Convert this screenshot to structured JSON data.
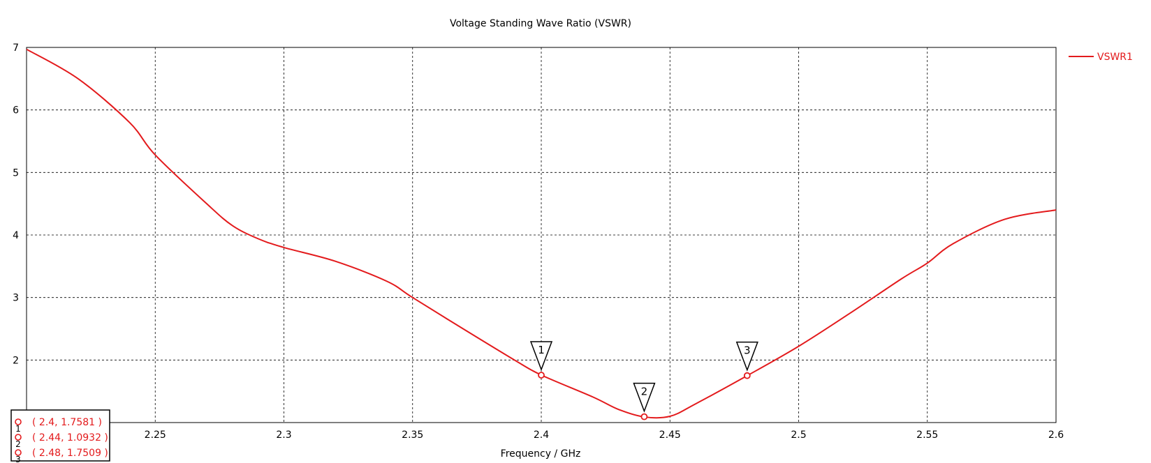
{
  "chart_data": {
    "type": "line",
    "title": "Voltage Standing Wave Ratio (VSWR)",
    "xlabel": "Frequency / GHz",
    "ylabel": "",
    "xlim": [
      2.2,
      2.6
    ],
    "ylim": [
      1,
      7
    ],
    "x_ticks": [
      "2.25",
      "2.3",
      "2.35",
      "2.4",
      "2.45",
      "2.5",
      "2.55",
      "2.6"
    ],
    "y_ticks": [
      "7",
      "6",
      "5",
      "4",
      "3",
      "2"
    ],
    "grid": true,
    "legend_position": "top-right",
    "series": [
      {
        "name": "VSWR1",
        "color": "#e31a1c",
        "x": [
          2.2,
          2.22,
          2.24,
          2.25,
          2.27,
          2.28,
          2.29,
          2.3,
          2.32,
          2.34,
          2.35,
          2.37,
          2.39,
          2.4,
          2.42,
          2.43,
          2.44,
          2.45,
          2.46,
          2.48,
          2.5,
          2.52,
          2.54,
          2.55,
          2.56,
          2.58,
          2.6
        ],
        "y": [
          6.97,
          6.5,
          5.8,
          5.28,
          4.5,
          4.15,
          3.94,
          3.8,
          3.58,
          3.26,
          3.0,
          2.49,
          1.99,
          1.76,
          1.41,
          1.21,
          1.09,
          1.1,
          1.3,
          1.75,
          2.22,
          2.75,
          3.3,
          3.55,
          3.86,
          4.25,
          4.4
        ]
      }
    ],
    "markers": [
      {
        "label": "1",
        "x": 2.4,
        "y": 1.7581,
        "text": "( 2.4, 1.7581 )"
      },
      {
        "label": "2",
        "x": 2.44,
        "y": 1.0932,
        "text": "( 2.44, 1.0932 )"
      },
      {
        "label": "3",
        "x": 2.48,
        "y": 1.7509,
        "text": "( 2.48, 1.7509 )"
      }
    ]
  }
}
